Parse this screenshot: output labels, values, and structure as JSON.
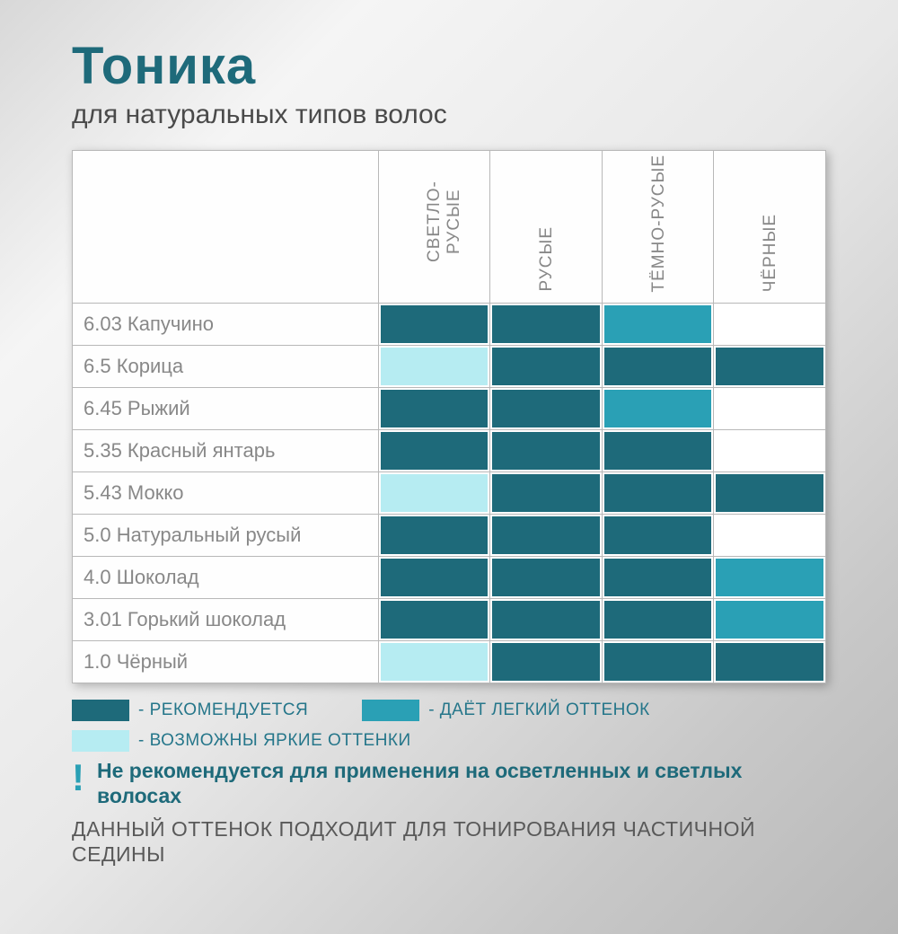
{
  "title": "Тоника",
  "subtitle": "для натуральных типов волос",
  "colors": {
    "recommended": "#1e6a7a",
    "light_tint": "#2aa0b5",
    "bright": "#b6ecf2",
    "empty": "#ffffff",
    "border": "#b8b8b8",
    "text_muted": "#888888"
  },
  "columns": [
    "СВЕТЛО-РУСЫЕ",
    "РУСЫЕ",
    "ТЁМНО-РУСЫЕ",
    "ЧЁРНЫЕ"
  ],
  "rows": [
    {
      "label": "6.03 Капучино",
      "cells": [
        "recommended",
        "recommended",
        "light_tint",
        "empty"
      ]
    },
    {
      "label": "6.5 Корица",
      "cells": [
        "bright",
        "recommended",
        "recommended",
        "recommended"
      ]
    },
    {
      "label": "6.45 Рыжий",
      "cells": [
        "recommended",
        "recommended",
        "light_tint",
        "empty"
      ]
    },
    {
      "label": "5.35 Красный янтарь",
      "cells": [
        "recommended",
        "recommended",
        "recommended",
        "empty"
      ]
    },
    {
      "label": "5.43 Мокко",
      "cells": [
        "bright",
        "recommended",
        "recommended",
        "recommended"
      ]
    },
    {
      "label": "5.0 Натуральный русый",
      "cells": [
        "recommended",
        "recommended",
        "recommended",
        "empty"
      ]
    },
    {
      "label": "4.0 Шоколад",
      "cells": [
        "recommended",
        "recommended",
        "recommended",
        "light_tint"
      ]
    },
    {
      "label": "3.01 Горький шоколад",
      "cells": [
        "recommended",
        "recommended",
        "recommended",
        "light_tint"
      ]
    },
    {
      "label": "1.0 Чёрный",
      "cells": [
        "bright",
        "recommended",
        "recommended",
        "recommended"
      ]
    }
  ],
  "legend": [
    {
      "key": "recommended",
      "label": "- РЕКОМЕНДУЕТСЯ"
    },
    {
      "key": "light_tint",
      "label": "- ДАЁТ ЛЕГКИЙ ОТТЕНОК"
    },
    {
      "key": "bright",
      "label": "- ВОЗМОЖНЫ ЯРКИЕ ОТТЕНКИ"
    }
  ],
  "warning": "Не рекомендуется для применения на осветленных и светлых волосах",
  "footer": "ДАННЫЙ ОТТЕНОК ПОДХОДИТ ДЛЯ ТОНИРОВАНИЯ ЧАСТИЧНОЙ СЕДИНЫ"
}
